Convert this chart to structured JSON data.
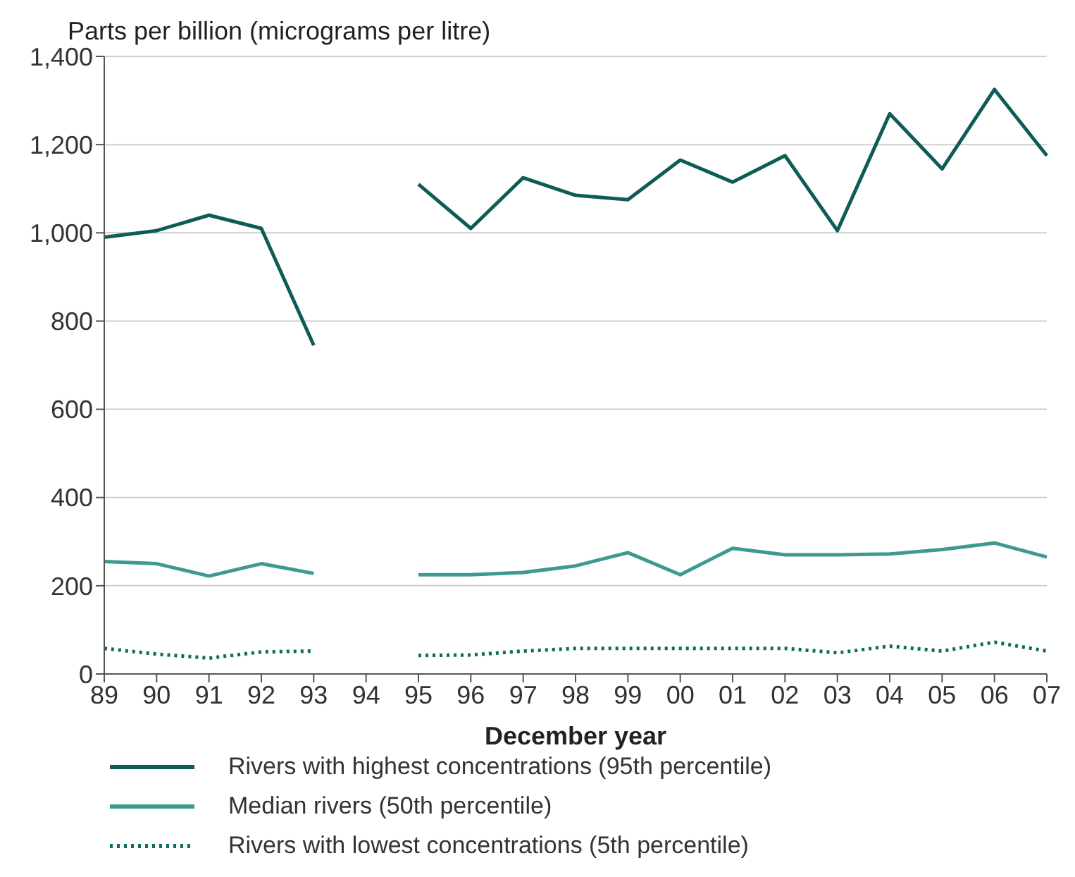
{
  "chart_data": {
    "type": "line",
    "ylabel": "Parts per billion (micrograms per litre)",
    "xlabel": "December year",
    "categories": [
      "89",
      "90",
      "91",
      "92",
      "93",
      "94",
      "95",
      "96",
      "97",
      "98",
      "99",
      "00",
      "01",
      "02",
      "03",
      "04",
      "05",
      "06",
      "07"
    ],
    "series": [
      {
        "name": "Rivers with highest concentrations (95th percentile)",
        "color": "#0d5c55",
        "line_style": "solid",
        "values": [
          990,
          1005,
          1040,
          1010,
          745,
          null,
          1110,
          1010,
          1125,
          1085,
          1075,
          1165,
          1115,
          1175,
          1005,
          1270,
          1145,
          1325,
          1175
        ]
      },
      {
        "name": "Median rivers (50th percentile)",
        "color": "#3d9a92",
        "line_style": "solid",
        "values": [
          255,
          250,
          222,
          250,
          228,
          null,
          225,
          225,
          230,
          245,
          275,
          225,
          285,
          270,
          270,
          272,
          282,
          297,
          265
        ]
      },
      {
        "name": "Rivers with lowest concentrations (5th percentile)",
        "color": "#0d6b60",
        "line_style": "dotted",
        "values": [
          58,
          45,
          36,
          50,
          52,
          null,
          42,
          43,
          52,
          58,
          58,
          58,
          58,
          58,
          48,
          63,
          52,
          72,
          52
        ]
      }
    ],
    "ylim": [
      0,
      1400
    ],
    "yticks": [
      {
        "value": 0,
        "label": "0"
      },
      {
        "value": 200,
        "label": "200"
      },
      {
        "value": 400,
        "label": "400"
      },
      {
        "value": 600,
        "label": "600"
      },
      {
        "value": 800,
        "label": "800"
      },
      {
        "value": 1000,
        "label": "1,000"
      },
      {
        "value": 1200,
        "label": "1,200"
      },
      {
        "value": 1400,
        "label": "1,400"
      }
    ],
    "grid": "y",
    "legend": "bottom",
    "marker": "none"
  }
}
